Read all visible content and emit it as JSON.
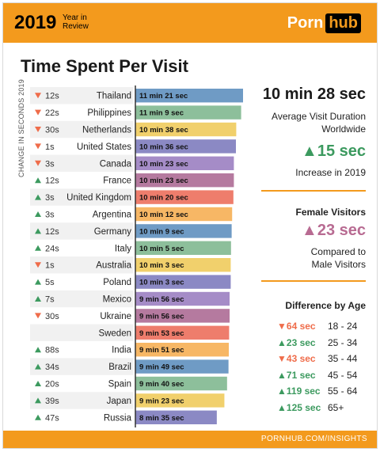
{
  "header": {
    "year": "2019",
    "subtitle_line1": "Year in",
    "subtitle_line2": "Review",
    "logo_part1": "Porn",
    "logo_part2": "hub"
  },
  "chart_data": {
    "type": "bar",
    "title": "Time Spent Per Visit",
    "side_label": "CHANGE IN SECONDS 2019",
    "categories": [
      "Thailand",
      "Philippines",
      "Netherlands",
      "United States",
      "Canada",
      "France",
      "United Kingdom",
      "Argentina",
      "Germany",
      "Italy",
      "Australia",
      "Poland",
      "Mexico",
      "Ukraine",
      "Sweden",
      "India",
      "Brazil",
      "Spain",
      "Japan",
      "Russia"
    ],
    "labels": [
      "11 min 21 sec",
      "11 min 9 sec",
      "10 min 38 sec",
      "10 min 36 sec",
      "10 min 23 sec",
      "10 min 23 sec",
      "10 min 20 sec",
      "10 min 12 sec",
      "10 min 9 sec",
      "10 min 5 sec",
      "10 min 3 sec",
      "10 min 3 sec",
      "9 min 56 sec",
      "9 min 56 sec",
      "9 min 53 sec",
      "9 min 51 sec",
      "9 min 49 sec",
      "9 min 40 sec",
      "9 min 23 sec",
      "8 min 35 sec"
    ],
    "values": [
      681,
      669,
      638,
      636,
      623,
      623,
      620,
      612,
      609,
      605,
      603,
      603,
      596,
      596,
      593,
      591,
      589,
      580,
      563,
      515
    ],
    "changes": [
      "12s",
      "22s",
      "30s",
      "1s",
      "3s",
      "12s",
      "3s",
      "3s",
      "12s",
      "24s",
      "1s",
      "5s",
      "7s",
      "30s",
      "",
      "88s",
      "34s",
      "20s",
      "39s",
      "47s"
    ],
    "directions": [
      "down",
      "down",
      "down",
      "down",
      "down",
      "up",
      "up",
      "up",
      "up",
      "up",
      "down",
      "up",
      "up",
      "down",
      "",
      "up",
      "up",
      "up",
      "up",
      "up"
    ],
    "bar_colors": [
      "#6f9bc5",
      "#8dbf9b",
      "#f1d06c",
      "#8b89c4",
      "#a58cc7",
      "#b57a9f",
      "#ee7d6c",
      "#f7b765",
      "#6f9bc5",
      "#8dbf9b",
      "#f1d06c",
      "#8b89c4",
      "#a58cc7",
      "#b57a9f",
      "#ee7d6c",
      "#f7b765",
      "#6f9bc5",
      "#8dbf9b",
      "#f1d06c",
      "#8b89c4"
    ],
    "up_color": "#3c9a5f",
    "down_color": "#ef6c4a"
  },
  "panel": {
    "avg_value": "10 min 28 sec",
    "avg_label_1": "Average Visit Duration",
    "avg_label_2": "Worldwide",
    "increase_value": "15 sec",
    "increase_label": "Increase in 2019",
    "female_title": "Female Visitors",
    "female_value": "23 sec",
    "female_label_1": "Compared to",
    "female_label_2": "Male Visitors",
    "age_title": "Difference by Age",
    "ages": [
      {
        "diff": "64 sec",
        "dir": "down",
        "range": "18 - 24"
      },
      {
        "diff": "23 sec",
        "dir": "up",
        "range": "25 - 34"
      },
      {
        "diff": "43 sec",
        "dir": "down",
        "range": "35 - 44"
      },
      {
        "diff": "71 sec",
        "dir": "up",
        "range": "45 - 54"
      },
      {
        "diff": "119 sec",
        "dir": "up",
        "range": "55 - 64"
      },
      {
        "diff": "125 sec",
        "dir": "up",
        "range": "65+"
      }
    ]
  },
  "footer": {
    "url": "PORNHUB.COM/INSIGHTS"
  },
  "colors": {
    "orange": "#f39a1d",
    "green": "#3c9a5f",
    "red": "#ef6c4a",
    "pink": "#b86b92"
  }
}
